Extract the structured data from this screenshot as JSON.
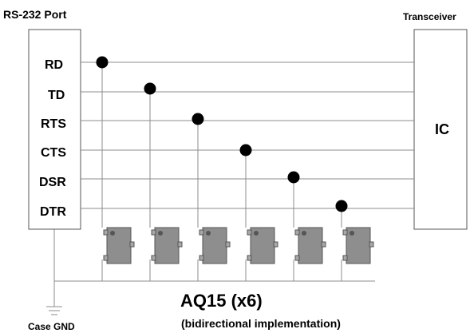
{
  "diagram": {
    "left_block_label": "RS-232 Port",
    "right_block_label": "Transceiver",
    "ic_label": "IC",
    "signals": [
      "RD",
      "TD",
      "RTS",
      "CTS",
      "DSR",
      "DTR"
    ],
    "device_label": "AQ15 (x6)",
    "device_sublabel": "(bidirectional implementation)",
    "ground_label": "Case GND",
    "colors": {
      "line": "#8c8c8c",
      "box_stroke": "#555555",
      "device_fill": "#8e8e8e",
      "device_pad": "#a8a8a8",
      "node": "#000000",
      "text": "#000000"
    }
  }
}
